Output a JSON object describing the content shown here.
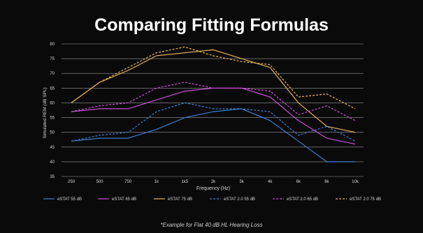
{
  "slide": {
    "title": "Comparing Fitting Formulas",
    "footnote": "*Example for Flat 40 dB HL Hearing Loss"
  },
  "chart_data": {
    "type": "line",
    "title": "Comparing Fitting Formulas",
    "xlabel": "Frequency (Hz)",
    "ylabel": "Simulated REM (dB SPL)",
    "ylim": [
      35,
      80
    ],
    "yticks": [
      35,
      40,
      45,
      50,
      55,
      60,
      65,
      70,
      75,
      80
    ],
    "categories": [
      "250",
      "500",
      "750",
      "1k",
      "1k5",
      "2k",
      "3k",
      "4k",
      "6k",
      "8k",
      "10k"
    ],
    "grid": true,
    "legend_position": "bottom",
    "series": [
      {
        "name": "eSTAT 55 dB",
        "color": "#3f7fd0",
        "dashed": false,
        "values": [
          47,
          48,
          48,
          51,
          55,
          57,
          58,
          54,
          47,
          40,
          40
        ]
      },
      {
        "name": "eSTAT 65 dB",
        "color": "#c94fd8",
        "dashed": false,
        "values": [
          57,
          58,
          58,
          61,
          64,
          65,
          65,
          62,
          54,
          48,
          46
        ]
      },
      {
        "name": "eSTAT 75 dB",
        "color": "#e9b35c",
        "dashed": false,
        "values": [
          60,
          67,
          71,
          76,
          77,
          78,
          75,
          72,
          60,
          52,
          50
        ]
      },
      {
        "name": "eSTAT 2.0 55 dB",
        "color": "#3f7fd0",
        "dashed": true,
        "values": [
          47,
          49,
          50,
          57,
          60,
          58,
          58,
          57,
          49,
          52,
          47
        ]
      },
      {
        "name": "eSTAT 2.0 65 dB",
        "color": "#c94fd8",
        "dashed": true,
        "values": [
          57,
          59,
          60,
          65,
          67,
          65,
          65,
          64,
          56,
          59,
          54
        ]
      },
      {
        "name": "eSTAT 2.0 75 dB",
        "color": "#e9b35c",
        "dashed": true,
        "values": [
          60,
          67,
          72,
          77,
          79,
          76,
          74,
          73,
          62,
          63,
          58
        ]
      }
    ]
  },
  "colors": {
    "background": "#0a0a0a",
    "text": "#ffffff",
    "axis_text": "#d8d8d8",
    "gridline": "#9a9a9a"
  }
}
